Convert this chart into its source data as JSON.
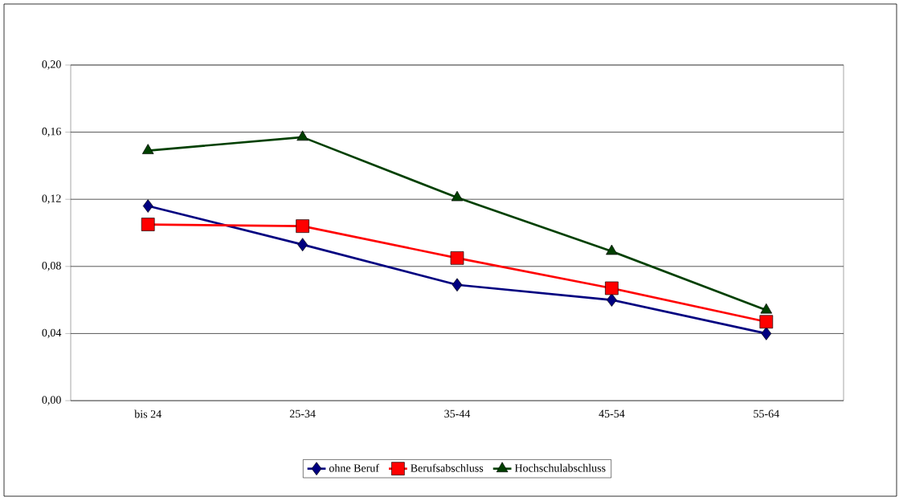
{
  "chart_data": {
    "type": "line",
    "categories": [
      "bis 24",
      "25-34",
      "35-44",
      "45-54",
      "55-64"
    ],
    "series": [
      {
        "name": "ohne Beruf",
        "color": "#000080",
        "marker": "diamond",
        "values": [
          0.116,
          0.093,
          0.069,
          0.06,
          0.04
        ]
      },
      {
        "name": "Berufsabschluss",
        "color": "#ff0000",
        "marker": "square",
        "values": [
          0.105,
          0.104,
          0.085,
          0.067,
          0.047
        ]
      },
      {
        "name": "Hochschulabschluss",
        "color": "#004000",
        "marker": "triangle",
        "values": [
          0.149,
          0.157,
          0.121,
          0.089,
          0.054
        ]
      }
    ],
    "ylim": [
      0,
      0.2
    ],
    "yticks": [
      {
        "value": 0,
        "label": "0,00"
      },
      {
        "value": 0.04,
        "label": "0,04"
      },
      {
        "value": 0.08,
        "label": "0,08"
      },
      {
        "value": 0.12,
        "label": "0,12"
      },
      {
        "value": 0.16,
        "label": "0,16"
      },
      {
        "value": 0.2,
        "label": "0,20"
      }
    ],
    "grid": "y",
    "legend": "bottom",
    "line_style": "solid"
  }
}
